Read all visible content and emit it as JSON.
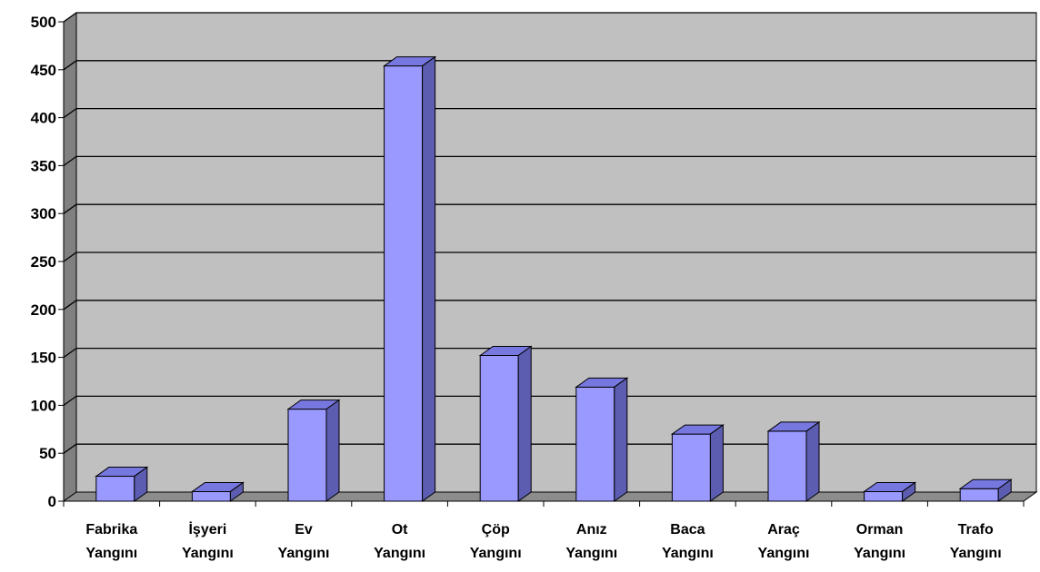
{
  "chart_data": {
    "type": "bar",
    "title": "",
    "xlabel": "",
    "ylabel": "",
    "ylim": [
      0,
      500
    ],
    "y_ticks": [
      "0",
      "50",
      "100",
      "150",
      "200",
      "250",
      "300",
      "350",
      "400",
      "450",
      "500"
    ],
    "grid": true,
    "legend": "none",
    "style": "3d-column",
    "categories": [
      [
        "Fabrika",
        "Yangını"
      ],
      [
        "İşyeri",
        "Yangını"
      ],
      [
        "Ev",
        "Yangını"
      ],
      [
        "Ot",
        "Yangını"
      ],
      [
        "Çöp",
        "Yangını"
      ],
      [
        "Anız",
        "Yangını"
      ],
      [
        "Baca",
        "Yangını"
      ],
      [
        "Araç",
        "Yangını"
      ],
      [
        "Orman",
        "Yangını"
      ],
      [
        "Trafo",
        "Yangını"
      ]
    ],
    "values": [
      26,
      10,
      96,
      454,
      152,
      119,
      70,
      73,
      10,
      13
    ]
  },
  "colors": {
    "bar_front": "#9999ff",
    "bar_top": "#7777e0",
    "bar_side": "#5c5cb0",
    "plot_back": "#c0c0c0",
    "plot_wall": "#808080",
    "plot_floor": "#8c8c8c",
    "grid_line": "#000000"
  }
}
